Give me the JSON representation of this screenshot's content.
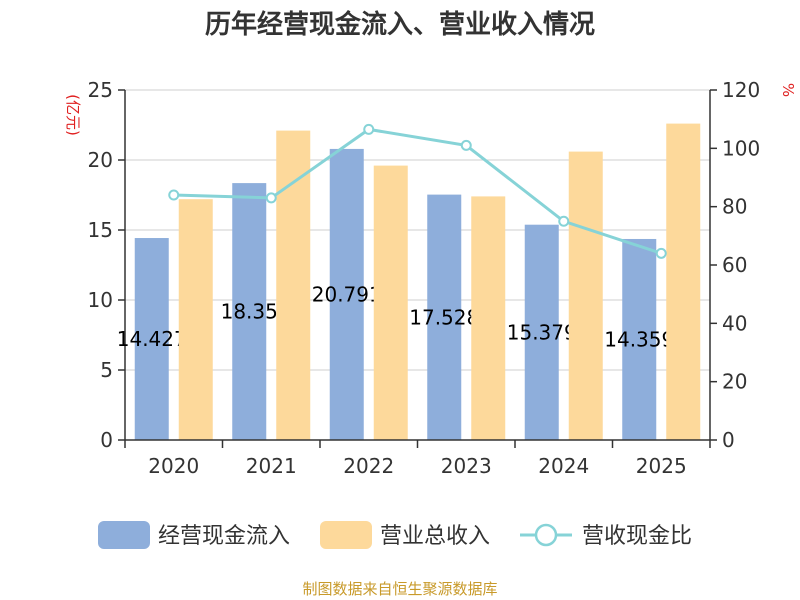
{
  "chart_data": {
    "type": "bar",
    "title": "历年经营现金流入、营业收入情况",
    "categories": [
      "2020",
      "2021",
      "2022",
      "2023",
      "2024",
      "2025"
    ],
    "series": [
      {
        "name": "经营现金流入",
        "type": "bar",
        "axis": "left",
        "color": "#8eaedb",
        "values": [
          14.427,
          18.35,
          20.791,
          17.528,
          15.379,
          14.359
        ],
        "labels": [
          "14.427",
          "18.35",
          "20.791",
          "17.528",
          "15.379",
          "14.359"
        ]
      },
      {
        "name": "营业总收入",
        "type": "bar",
        "axis": "left",
        "color": "#fdd99b",
        "values": [
          17.2,
          22.1,
          19.6,
          17.4,
          20.6,
          22.6
        ]
      },
      {
        "name": "营收现金比",
        "type": "line",
        "axis": "right",
        "color": "#86d3d7",
        "values": [
          84,
          83,
          106.5,
          101,
          75,
          64
        ]
      }
    ],
    "y_left": {
      "unit": "(亿元)",
      "ylim": [
        0,
        25
      ],
      "ticks": [
        "0",
        "5",
        "10",
        "15",
        "20",
        "25"
      ]
    },
    "y_right": {
      "unit": "%",
      "ylim": [
        0,
        120
      ],
      "ticks": [
        "0",
        "20",
        "40",
        "60",
        "80",
        "100",
        "120"
      ]
    },
    "grid": true,
    "legend_position": "bottom"
  },
  "source": "制图数据来自恒生聚源数据库"
}
